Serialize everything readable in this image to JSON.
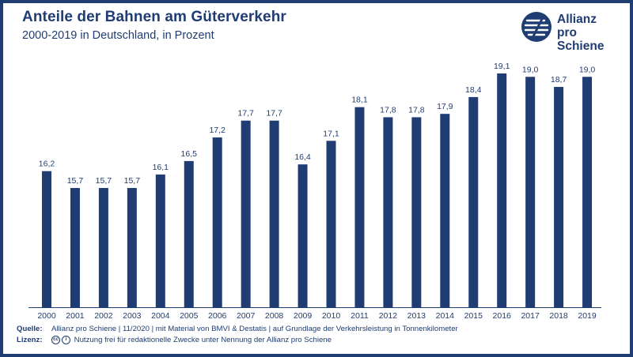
{
  "header": {
    "title": "Anteile der Bahnen am Güterverkehr",
    "subtitle": "2000-2019 in Deutschland, in Prozent"
  },
  "logo": {
    "line1": "Allianz",
    "line2": "pro Schiene",
    "icon": "allianz-pro-schiene-logo-icon"
  },
  "footer": {
    "source_label": "Quelle:",
    "source_text": "Allianz pro Schiene | 11/2020 | mit Material von BMVI & Destatis | auf Grundlage der Verkehrsleistung in Tonnenkilometer",
    "license_label": "Lizenz:",
    "license_icons": [
      "creative-commons-icon",
      "attribution-icon"
    ],
    "license_text": "Nutzung frei für redaktionelle Zwecke unter Nennung der Allianz pro Schiene"
  },
  "colors": {
    "bar": "#1f3d73",
    "text": "#1f3d73",
    "frame": "#1f3d73"
  },
  "chart_data": {
    "type": "bar",
    "categories": [
      "2000",
      "2001",
      "2002",
      "2003",
      "2004",
      "2005",
      "2006",
      "2007",
      "2008",
      "2009",
      "2010",
      "2011",
      "2012",
      "2013",
      "2014",
      "2015",
      "2016",
      "2017",
      "2018",
      "2019"
    ],
    "values": [
      16.2,
      15.7,
      15.7,
      15.7,
      16.1,
      16.5,
      17.2,
      17.7,
      17.7,
      16.4,
      17.1,
      18.1,
      17.8,
      17.8,
      17.9,
      18.4,
      19.1,
      19.0,
      18.7,
      19.0
    ],
    "labels": [
      "16,2",
      "15,7",
      "15,7",
      "15,7",
      "16,1",
      "16,5",
      "17,2",
      "17,7",
      "17,7",
      "16,4",
      "17,1",
      "18,1",
      "17,8",
      "17,8",
      "17,9",
      "18,4",
      "19,1",
      "19,0",
      "18,7",
      "19,0"
    ],
    "ylim": [
      12.16,
      19.1
    ],
    "grid": false,
    "legend": "none"
  }
}
